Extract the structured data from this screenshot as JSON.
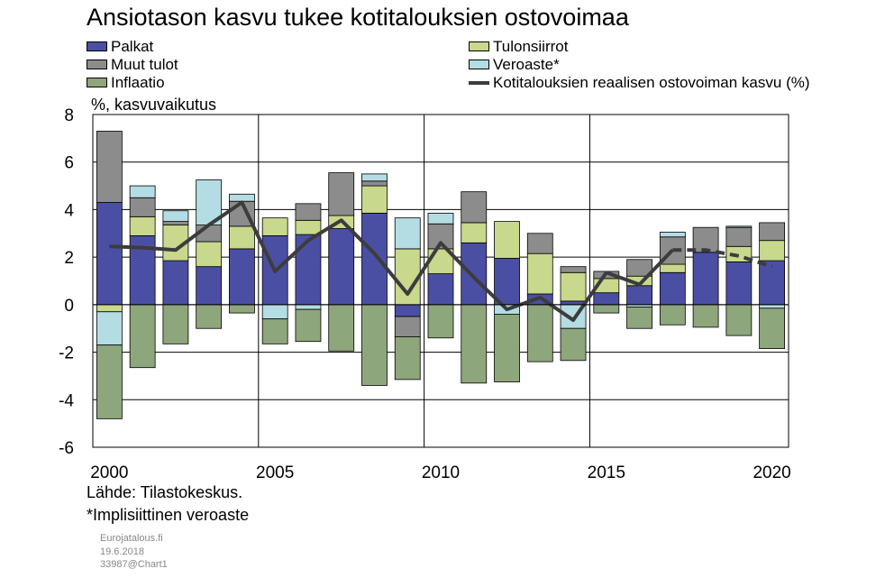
{
  "chart_data": {
    "type": "bar",
    "stacked": true,
    "title": "Ansiotason kasvu tukee kotitalouksien ostovoimaa",
    "ylabel": "%, kasvuvaikutus",
    "ylim": [
      -6,
      8
    ],
    "yticks": [
      -6,
      -4,
      -2,
      0,
      2,
      4,
      6,
      8
    ],
    "xticks": [
      "2000",
      "2005",
      "2010",
      "2015",
      "2020"
    ],
    "grid": true,
    "legend_position": "top",
    "categories": [
      2000,
      2001,
      2002,
      2003,
      2004,
      2005,
      2006,
      2007,
      2008,
      2009,
      2010,
      2011,
      2012,
      2013,
      2014,
      2015,
      2016,
      2017,
      2018,
      2019,
      2020
    ],
    "series": [
      {
        "name": "Palkat",
        "color": "#4b4fa3",
        "values": [
          4.3,
          2.9,
          1.85,
          1.6,
          2.35,
          2.9,
          2.95,
          3.2,
          3.85,
          -0.5,
          1.3,
          2.6,
          1.95,
          0.45,
          0.15,
          0.5,
          0.8,
          1.35,
          2.2,
          1.8,
          1.85
        ]
      },
      {
        "name": "Tulonsiirrot",
        "color": "#c8d88c",
        "values": [
          -0.3,
          0.8,
          1.5,
          1.05,
          0.95,
          0.75,
          0.6,
          0.55,
          1.15,
          2.35,
          1.05,
          0.85,
          1.55,
          1.7,
          1.2,
          0.6,
          0.4,
          0.35,
          0.0,
          0.65,
          0.85
        ]
      },
      {
        "name": "Muut tulot",
        "color": "#8c8c8c",
        "values": [
          3.0,
          0.8,
          0.15,
          0.7,
          1.05,
          0.0,
          0.7,
          1.8,
          0.2,
          -0.85,
          1.05,
          1.3,
          0.0,
          0.85,
          0.25,
          0.3,
          0.7,
          1.15,
          1.05,
          0.8,
          0.75
        ]
      },
      {
        "name": "Veroaste*",
        "color": "#b3dde3",
        "values": [
          -1.4,
          0.5,
          0.45,
          1.9,
          0.3,
          -0.6,
          -0.2,
          0.0,
          0.3,
          1.3,
          0.45,
          0.0,
          -0.4,
          0.0,
          -1.0,
          0.0,
          -0.1,
          0.2,
          0.0,
          0.05,
          -0.15
        ]
      },
      {
        "name": "Inflaatio",
        "color": "#8ea67c",
        "values": [
          -3.1,
          -2.65,
          -1.65,
          -1.0,
          -0.35,
          -1.05,
          -1.35,
          -1.95,
          -3.4,
          -1.8,
          -1.4,
          -3.3,
          -2.85,
          -2.4,
          -1.35,
          -0.35,
          -0.9,
          -0.85,
          -0.95,
          -1.3,
          -1.7
        ]
      },
      {
        "name": "Kotitalouksien reaalisen ostovoiman kasvu (%)",
        "color": "#3c3c3c",
        "type": "line",
        "values": [
          2.45,
          2.4,
          2.3,
          3.35,
          4.3,
          1.4,
          2.7,
          3.55,
          2.15,
          0.45,
          2.6,
          1.15,
          -0.2,
          0.3,
          -0.65,
          1.35,
          0.85,
          2.3,
          2.3,
          2.05,
          1.6
        ],
        "dashed_from": 2017
      }
    ]
  },
  "notes": {
    "source": "Lähde: Tilastokeskus.",
    "footnote": "*Implisiittinen  veroaste",
    "site": "Eurojatalous.fi",
    "date": "19.6.2018",
    "id": "33987@Chart1"
  }
}
